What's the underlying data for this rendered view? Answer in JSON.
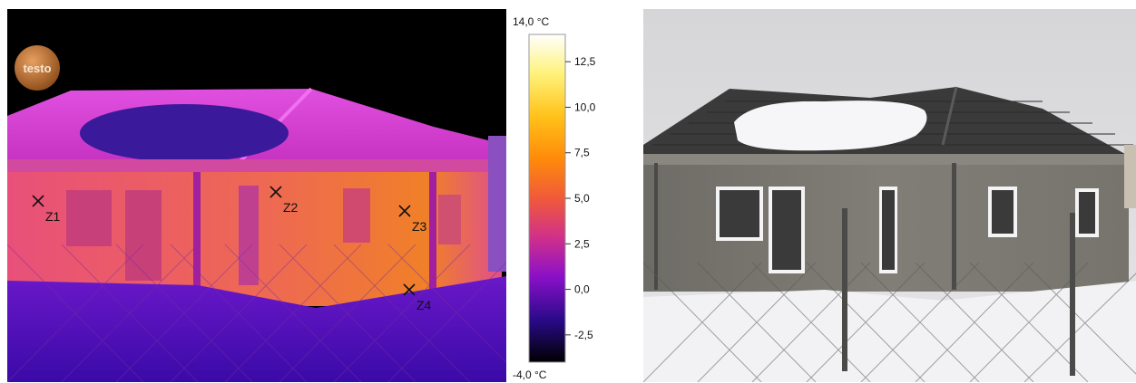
{
  "logo": {
    "text": "testo"
  },
  "markers": [
    {
      "label": "Z1"
    },
    {
      "label": "Z2"
    },
    {
      "label": "Z3"
    },
    {
      "label": "Z4"
    }
  ],
  "scale": {
    "max_label": "14,0 °C",
    "min_label": "-4,0 °C",
    "ticks": [
      "12,5",
      "10,0",
      "7,5",
      "5,0",
      "2,5",
      "0,0",
      "-2,5"
    ],
    "palette": [
      "#ffffff",
      "#fff27a",
      "#ffc21a",
      "#ff8a0a",
      "#f05a3a",
      "#d0308a",
      "#8a10c8",
      "#2a0a8a",
      "#000000"
    ]
  },
  "colors": {
    "sky_thermal": "#000000",
    "roof_thermal": "#d23ad0",
    "snow_patch_thermal": "#3a1a9a",
    "wall_thermal": "#e85a6a",
    "wall_warm_thermal": "#f07a30",
    "ground_thermal": "#4a10c0",
    "sky_photo": "#dcdcdc",
    "roof_photo": "#3c3c3c",
    "wall_photo": "#7c7a72",
    "snow_photo": "#f4f4f6"
  }
}
